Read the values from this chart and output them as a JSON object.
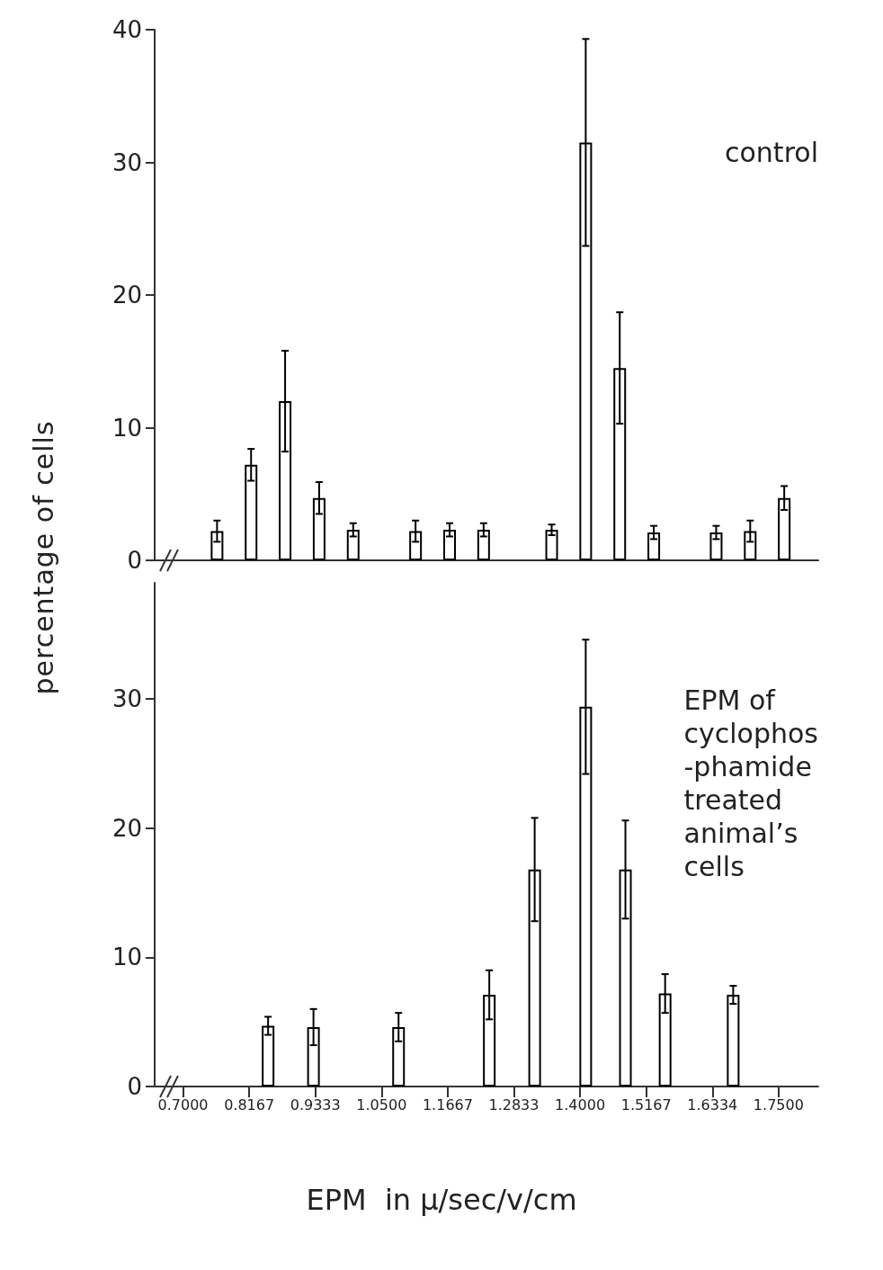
{
  "chart_data": [
    {
      "type": "bar",
      "ylabel": "percentage of cells",
      "annotations": [
        "control"
      ],
      "color": "#000000",
      "x": [
        0.76,
        0.82,
        0.88,
        0.94,
        1.0,
        1.11,
        1.17,
        1.23,
        1.35,
        1.41,
        1.47,
        1.53,
        1.64,
        1.7,
        1.76
      ],
      "values": [
        2.2,
        7.2,
        12.0,
        4.7,
        2.3,
        2.2,
        2.3,
        2.3,
        2.3,
        31.5,
        14.5,
        2.1,
        2.1,
        2.2,
        4.7
      ],
      "errors": [
        0.8,
        1.2,
        3.8,
        1.2,
        0.5,
        0.8,
        0.5,
        0.5,
        0.4,
        7.8,
        4.2,
        0.5,
        0.5,
        0.8,
        0.9
      ],
      "xlim": [
        0.65,
        1.82
      ],
      "ylim": [
        0,
        40
      ],
      "yticks": [
        0,
        10,
        20,
        30,
        40
      ],
      "tick_labels": "y"
    },
    {
      "type": "bar",
      "xlabel": "EPM  in μ/sec/v/cm",
      "annotations": [
        "EPM of\ncyclophos\n-phamide\ntreated\nanimal’s\ncells"
      ],
      "color": "#000000",
      "x": [
        0.85,
        0.93,
        1.08,
        1.24,
        1.32,
        1.41,
        1.48,
        1.55,
        1.67
      ],
      "values": [
        4.7,
        4.6,
        4.6,
        7.1,
        16.8,
        29.4,
        16.8,
        7.2,
        7.1
      ],
      "errors": [
        0.7,
        1.4,
        1.1,
        1.9,
        4.0,
        5.2,
        3.8,
        1.5,
        0.7
      ],
      "xlim": [
        0.65,
        1.82
      ],
      "xticks": [
        {
          "value": 0.7,
          "label": "0.7000"
        },
        {
          "value": 0.8167,
          "label": "0.8167"
        },
        {
          "value": 0.9333,
          "label": "0.9333"
        },
        {
          "value": 1.05,
          "label": "1.0500"
        },
        {
          "value": 1.1667,
          "label": "1.1667"
        },
        {
          "value": 1.2833,
          "label": "1.2833"
        },
        {
          "value": 1.4,
          "label": "1.4000"
        },
        {
          "value": 1.5167,
          "label": "1.5167"
        },
        {
          "value": 1.6334,
          "label": "1.6334"
        },
        {
          "value": 1.75,
          "label": "1.7500"
        }
      ],
      "ylim": [
        0,
        39
      ],
      "yticks": [
        0,
        10,
        20,
        30
      ]
    }
  ]
}
